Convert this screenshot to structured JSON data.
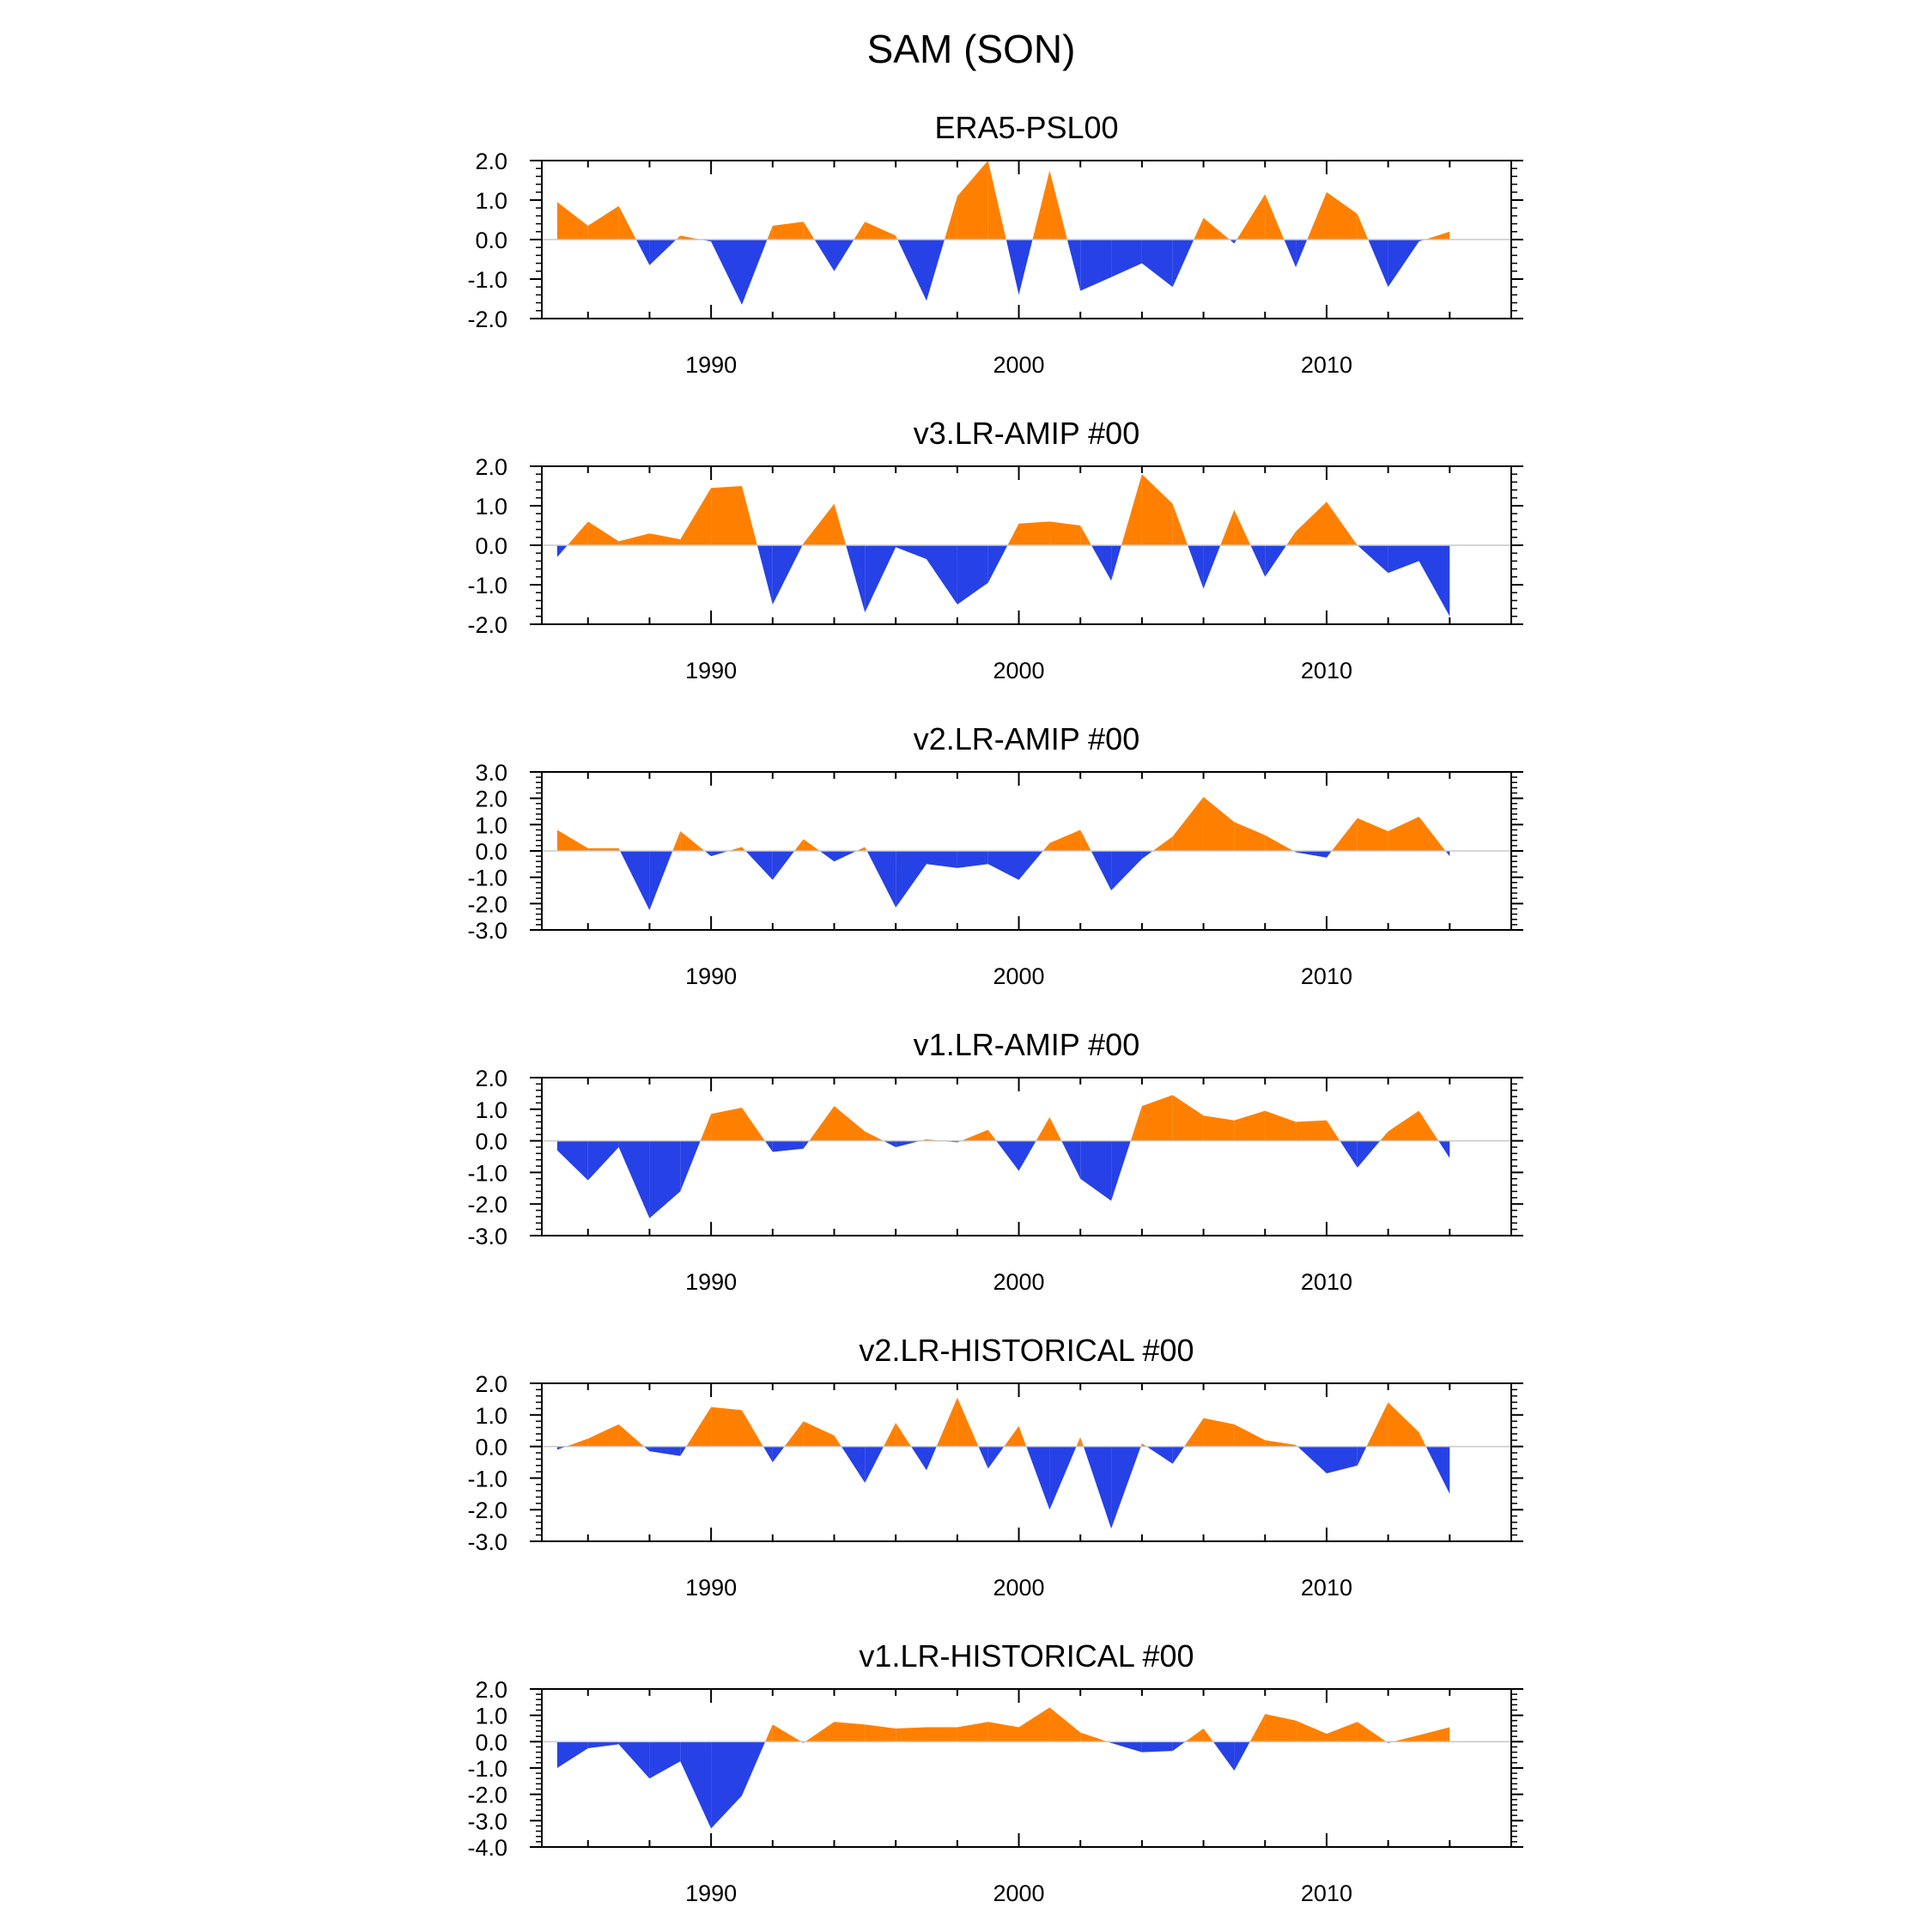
{
  "figure_title": "SAM (SON)",
  "chart_data": [
    {
      "type": "area",
      "title": "ERA5-PSL00",
      "x": [
        1985,
        1986,
        1987,
        1988,
        1989,
        1990,
        1991,
        1992,
        1993,
        1994,
        1995,
        1996,
        1997,
        1998,
        1999,
        2000,
        2001,
        2002,
        2003,
        2004,
        2005,
        2006,
        2007,
        2008,
        2009,
        2010,
        2011,
        2012,
        2013,
        2014
      ],
      "values": [
        0.95,
        0.35,
        0.85,
        -0.65,
        0.1,
        -0.05,
        -1.65,
        0.35,
        0.45,
        -0.8,
        0.45,
        0.1,
        -1.55,
        1.1,
        2.0,
        -1.4,
        1.75,
        -1.3,
        -0.95,
        -0.6,
        -1.2,
        0.55,
        -0.1,
        1.15,
        -0.7,
        1.2,
        0.65,
        -1.2,
        -0.05,
        0.2
      ],
      "yticks": [
        "2.0",
        "1.0",
        "0.0",
        "-1.0",
        "-2.0"
      ],
      "ylim": [
        -2,
        2
      ],
      "xlim": [
        1984.5,
        2016
      ],
      "xticks": [
        "1990",
        "2000",
        "2010"
      ],
      "positive_color": "#ff8000",
      "negative_color": "#2641e6"
    },
    {
      "type": "area",
      "title": "v3.LR-AMIP  #00",
      "x": [
        1985,
        1986,
        1987,
        1988,
        1989,
        1990,
        1991,
        1992,
        1993,
        1994,
        1995,
        1996,
        1997,
        1998,
        1999,
        2000,
        2001,
        2002,
        2003,
        2004,
        2005,
        2006,
        2007,
        2008,
        2009,
        2010,
        2011,
        2012,
        2013,
        2014
      ],
      "values": [
        -0.3,
        0.6,
        0.1,
        0.3,
        0.15,
        1.45,
        1.5,
        -1.5,
        0.05,
        1.05,
        -1.7,
        -0.05,
        -0.35,
        -1.5,
        -0.95,
        0.55,
        0.6,
        0.5,
        -0.9,
        1.8,
        1.05,
        -1.1,
        0.9,
        -0.8,
        0.35,
        1.1,
        0.0,
        -0.7,
        -0.4,
        -1.8
      ],
      "yticks": [
        "2.0",
        "1.0",
        "0.0",
        "-1.0",
        "-2.0"
      ],
      "ylim": [
        -2,
        2
      ],
      "xlim": [
        1984.5,
        2016
      ],
      "xticks": [
        "1990",
        "2000",
        "2010"
      ],
      "positive_color": "#ff8000",
      "negative_color": "#2641e6"
    },
    {
      "type": "area",
      "title": "v2.LR-AMIP  #00",
      "x": [
        1985,
        1986,
        1987,
        1988,
        1989,
        1990,
        1991,
        1992,
        1993,
        1994,
        1995,
        1996,
        1997,
        1998,
        1999,
        2000,
        2001,
        2002,
        2003,
        2004,
        2005,
        2006,
        2007,
        2008,
        2009,
        2010,
        2011,
        2012,
        2013,
        2014
      ],
      "values": [
        0.8,
        0.1,
        0.1,
        -2.25,
        0.75,
        -0.2,
        0.15,
        -1.1,
        0.45,
        -0.4,
        0.15,
        -2.15,
        -0.5,
        -0.65,
        -0.5,
        -1.1,
        0.3,
        0.8,
        -1.5,
        -0.3,
        0.55,
        2.05,
        1.1,
        0.6,
        -0.05,
        -0.25,
        1.25,
        0.75,
        1.3,
        -0.2
      ],
      "yticks": [
        "3.0",
        "2.0",
        "1.0",
        "0.0",
        "-1.0",
        "-2.0",
        "-3.0"
      ],
      "ylim": [
        -3,
        3
      ],
      "xlim": [
        1984.5,
        2016
      ],
      "xticks": [
        "1990",
        "2000",
        "2010"
      ],
      "positive_color": "#ff8000",
      "negative_color": "#2641e6"
    },
    {
      "type": "area",
      "title": "v1.LR-AMIP  #00",
      "x": [
        1985,
        1986,
        1987,
        1988,
        1989,
        1990,
        1991,
        1992,
        1993,
        1994,
        1995,
        1996,
        1997,
        1998,
        1999,
        2000,
        2001,
        2002,
        2003,
        2004,
        2005,
        2006,
        2007,
        2008,
        2009,
        2010,
        2011,
        2012,
        2013,
        2014
      ],
      "values": [
        -0.3,
        -1.25,
        -0.2,
        -2.45,
        -1.6,
        0.85,
        1.05,
        -0.35,
        -0.25,
        1.1,
        0.3,
        -0.2,
        0.05,
        -0.05,
        0.35,
        -0.95,
        0.75,
        -1.2,
        -1.9,
        1.1,
        1.45,
        0.8,
        0.65,
        0.95,
        0.6,
        0.65,
        -0.85,
        0.3,
        0.95,
        -0.55
      ],
      "yticks": [
        "2.0",
        "1.0",
        "0.0",
        "-1.0",
        "-2.0",
        "-3.0"
      ],
      "ylim": [
        -3,
        2
      ],
      "xlim": [
        1984.5,
        2016
      ],
      "xticks": [
        "1990",
        "2000",
        "2010"
      ],
      "positive_color": "#ff8000",
      "negative_color": "#2641e6"
    },
    {
      "type": "area",
      "title": "v2.LR-HISTORICAL  #00",
      "x": [
        1985,
        1986,
        1987,
        1988,
        1989,
        1990,
        1991,
        1992,
        1993,
        1994,
        1995,
        1996,
        1997,
        1998,
        1999,
        2000,
        2001,
        2002,
        2003,
        2004,
        2005,
        2006,
        2007,
        2008,
        2009,
        2010,
        2011,
        2012,
        2013,
        2014
      ],
      "values": [
        -0.1,
        0.25,
        0.7,
        -0.15,
        -0.3,
        1.25,
        1.15,
        -0.5,
        0.8,
        0.35,
        -1.15,
        0.75,
        -0.75,
        1.55,
        -0.7,
        0.65,
        -2.0,
        0.3,
        -2.6,
        0.1,
        -0.55,
        0.9,
        0.7,
        0.2,
        0.05,
        -0.85,
        -0.6,
        1.4,
        0.45,
        -1.5
      ],
      "yticks": [
        "2.0",
        "1.0",
        "0.0",
        "-1.0",
        "-2.0",
        "-3.0"
      ],
      "ylim": [
        -3,
        2
      ],
      "xlim": [
        1984.5,
        2016
      ],
      "xticks": [
        "1990",
        "2000",
        "2010"
      ],
      "positive_color": "#ff8000",
      "negative_color": "#2641e6"
    },
    {
      "type": "area",
      "title": "v1.LR-HISTORICAL  #00",
      "x": [
        1985,
        1986,
        1987,
        1988,
        1989,
        1990,
        1991,
        1992,
        1993,
        1994,
        1995,
        1996,
        1997,
        1998,
        1999,
        2000,
        2001,
        2002,
        2003,
        2004,
        2005,
        2006,
        2007,
        2008,
        2009,
        2010,
        2011,
        2012,
        2013,
        2014
      ],
      "values": [
        -1.0,
        -0.25,
        -0.1,
        -1.4,
        -0.75,
        -3.3,
        -2.05,
        0.65,
        -0.05,
        0.75,
        0.65,
        0.5,
        0.55,
        0.55,
        0.75,
        0.55,
        1.3,
        0.35,
        -0.05,
        -0.4,
        -0.35,
        0.5,
        -1.1,
        1.05,
        0.8,
        0.3,
        0.75,
        -0.05,
        0.25,
        0.55
      ],
      "yticks": [
        "2.0",
        "1.0",
        "0.0",
        "-1.0",
        "-2.0",
        "-3.0",
        "-4.0"
      ],
      "ylim": [
        -4,
        2
      ],
      "xlim": [
        1984.5,
        2016
      ],
      "xticks": [
        "1990",
        "2000",
        "2010"
      ],
      "positive_color": "#ff8000",
      "negative_color": "#2641e6"
    }
  ]
}
